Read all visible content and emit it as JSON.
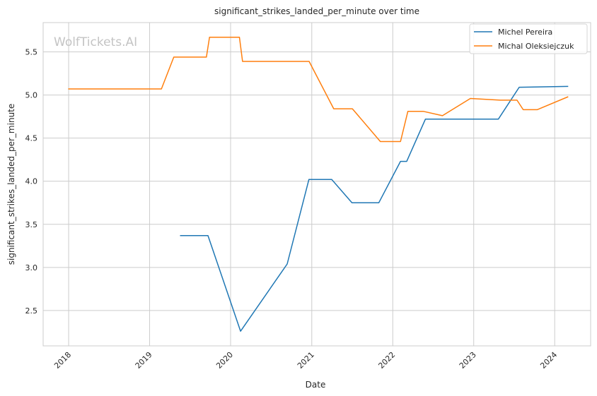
{
  "chart_data": {
    "type": "line",
    "title": "significant_strikes_landed_per_minute over time",
    "xlabel": "Date",
    "ylabel": "significant_strikes_landed_per_minute",
    "watermark": "WolfTickets.AI",
    "x_ticks": [
      "2018",
      "2019",
      "2020",
      "2021",
      "2022",
      "2023",
      "2024"
    ],
    "y_ticks": [
      "2.5",
      "3.0",
      "3.5",
      "4.0",
      "4.5",
      "5.0",
      "5.5"
    ],
    "xlim": [
      "2017-09-08",
      "2024-06-11"
    ],
    "ylim": [
      2.09,
      5.84
    ],
    "grid": true,
    "legend_position": "top-right",
    "series": [
      {
        "name": "Michel Pereira",
        "color": "#1f77b4",
        "points": [
          [
            "2019-05-18",
            3.37
          ],
          [
            "2019-09-21",
            3.37
          ],
          [
            "2020-02-15",
            2.26
          ],
          [
            "2020-09-12",
            3.04
          ],
          [
            "2020-12-19",
            4.02
          ],
          [
            "2021-04-01",
            4.02
          ],
          [
            "2021-07-01",
            3.75
          ],
          [
            "2021-10-30",
            3.75
          ],
          [
            "2022-02-05",
            4.23
          ],
          [
            "2022-03-05",
            4.23
          ],
          [
            "2022-05-28",
            4.72
          ],
          [
            "2023-04-22",
            4.72
          ],
          [
            "2023-07-25",
            5.09
          ],
          [
            "2024-03-02",
            5.1
          ]
        ]
      },
      {
        "name": "Michal Oleksiejczuk",
        "color": "#ff7f0e",
        "points": [
          [
            "2017-12-30",
            5.07
          ],
          [
            "2019-02-23",
            5.07
          ],
          [
            "2019-04-20",
            5.44
          ],
          [
            "2019-09-14",
            5.44
          ],
          [
            "2019-09-28",
            5.67
          ],
          [
            "2020-02-10",
            5.67
          ],
          [
            "2020-02-24",
            5.39
          ],
          [
            "2020-12-20",
            5.39
          ],
          [
            "2021-04-10",
            4.84
          ],
          [
            "2021-07-03",
            4.84
          ],
          [
            "2021-11-06",
            4.46
          ],
          [
            "2022-02-05",
            4.46
          ],
          [
            "2022-03-10",
            4.81
          ],
          [
            "2022-05-20",
            4.81
          ],
          [
            "2022-08-13",
            4.76
          ],
          [
            "2022-12-17",
            4.96
          ],
          [
            "2023-05-01",
            4.94
          ],
          [
            "2023-07-15",
            4.94
          ],
          [
            "2023-08-12",
            4.83
          ],
          [
            "2023-10-14",
            4.83
          ],
          [
            "2024-03-02",
            4.98
          ]
        ]
      }
    ]
  }
}
